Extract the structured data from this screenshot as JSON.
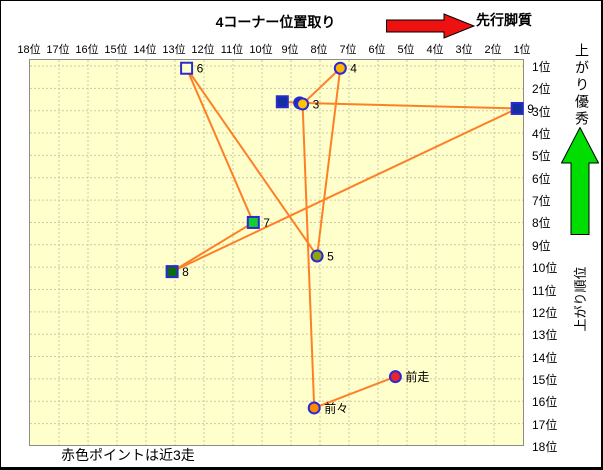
{
  "window": {
    "title": "4コーナー位置取り",
    "note": "赤色ポイントは近3走"
  },
  "annotations": {
    "top_arrow_text": "先行脚質",
    "right_up_text": "上がり優秀",
    "right_axis_text": "上がり順位"
  },
  "colors": {
    "plot_bg": "#FFFFCC",
    "grid": "#C9C9A8",
    "plot_border": "#8C8C8C",
    "line": "#FF7F27",
    "marker_border": "#2A2AD4",
    "red_arrow": "#EE1111",
    "green_arrow": "#00DD00",
    "label_text": "#000000"
  },
  "chart_data": {
    "type": "scatter",
    "title": "4コーナー位置取り",
    "x_axis": {
      "labels": [
        "18位",
        "17位",
        "16位",
        "15位",
        "14位",
        "13位",
        "12位",
        "11位",
        "10位",
        "9位",
        "8位",
        "7位",
        "6位",
        "5位",
        "4位",
        "3位",
        "2位",
        "1位"
      ],
      "range_left_to_right": [
        18,
        1
      ],
      "position": "top",
      "meaning": "4コーナー位置取り (先行脚質 →)"
    },
    "y_axis": {
      "labels": [
        "1位",
        "2位",
        "3位",
        "4位",
        "5位",
        "6位",
        "7位",
        "8位",
        "9位",
        "10位",
        "11位",
        "12位",
        "13位",
        "14位",
        "15位",
        "16位",
        "17位",
        "18位"
      ],
      "range_top_to_bottom": [
        1,
        18
      ],
      "position": "right",
      "meaning": "上がり順位 (↑ 上がり優秀)"
    },
    "grid": true,
    "line_connects_points_in_order": true,
    "points": [
      {
        "label": "前走",
        "shape": "circle",
        "x": 5.4,
        "y": 14.9,
        "fill": "#E8232A"
      },
      {
        "label": "前々",
        "shape": "circle",
        "x": 8.2,
        "y": 16.3,
        "fill": "#FF8A00"
      },
      {
        "label": "3",
        "shape": "circle",
        "x": 8.6,
        "y": 2.7,
        "fill": "#FFC400"
      },
      {
        "label": "4",
        "shape": "circle",
        "x": 7.3,
        "y": 1.1,
        "fill": "#FFB400"
      },
      {
        "label": "5",
        "shape": "circle",
        "x": 8.1,
        "y": 9.5,
        "fill": "#93A40B"
      },
      {
        "label": "6",
        "shape": "square",
        "x": 12.6,
        "y": 1.1,
        "fill": "#FFFFCC"
      },
      {
        "label": "7",
        "shape": "square",
        "x": 10.3,
        "y": 8.0,
        "fill": "#17CC2E"
      },
      {
        "label": "8",
        "shape": "square",
        "x": 13.1,
        "y": 10.2,
        "fill": "#0B6B14"
      },
      {
        "label": "9",
        "shape": "square",
        "x": 1.2,
        "y": 2.9,
        "fill": "#142F9E"
      },
      {
        "label": "",
        "shape": "circle",
        "x": 8.7,
        "y": 2.65,
        "fill": "#142F9E"
      },
      {
        "label": "",
        "shape": "square",
        "x": 9.3,
        "y": 2.6,
        "fill": "#142F9E"
      }
    ]
  }
}
